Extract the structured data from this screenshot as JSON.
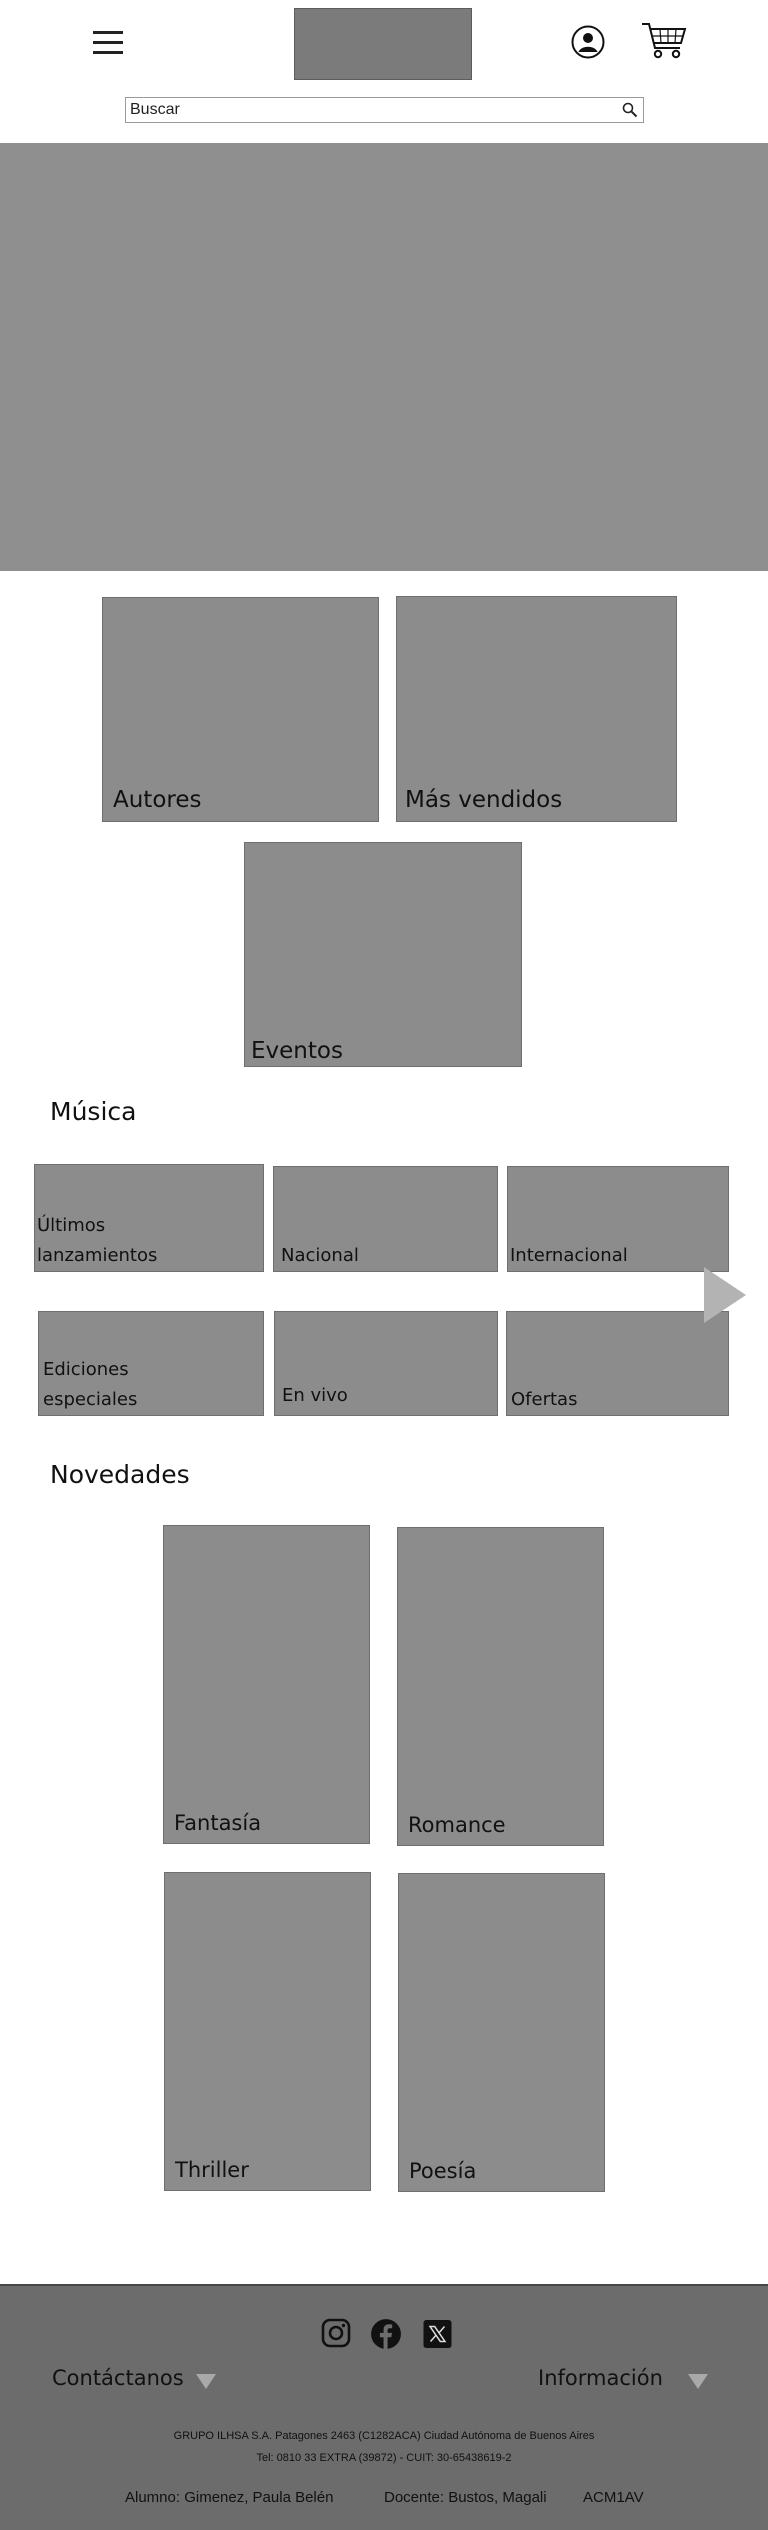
{
  "header": {
    "menu_icon": "hamburger-icon",
    "user_icon": "user-circle-icon",
    "cart_icon": "shopping-cart-icon",
    "search": {
      "placeholder": "Buscar",
      "icon": "search-icon"
    }
  },
  "categories": {
    "autores": "Autores",
    "mas_vendidos": "Más vendidos",
    "eventos": "Eventos"
  },
  "musica": {
    "title": "Música",
    "items": [
      "Últimos lanzamientos",
      "Nacional",
      "Internacional",
      "Ediciones especiales",
      "En vivo",
      "Ofertas"
    ],
    "next_icon": "arrow-right-icon"
  },
  "novedades": {
    "title": "Novedades",
    "items": [
      "Fantasía",
      "Romance",
      "Thriller",
      "Poesía"
    ]
  },
  "footer": {
    "social_icons": [
      "instagram-icon",
      "facebook-icon",
      "x-icon"
    ],
    "contactanos": "Contáctanos",
    "informacion": "Información",
    "address": "GRUPO ILHSA S.A. Patagones 2463 (C1282ACA) Ciudad Autónoma de Buenos Aires",
    "phone": "Tel: 0810 33 EXTRA (39872) - CUIT: 30-65438619-2",
    "alumno": "Alumno: Gimenez, Paula Belén",
    "docente": "Docente: Bustos, Magali",
    "curso": "ACM1AV",
    "colors": {
      "footer_bg": "#6c6c6c",
      "placeholder_box": "#8c8c8c"
    }
  }
}
